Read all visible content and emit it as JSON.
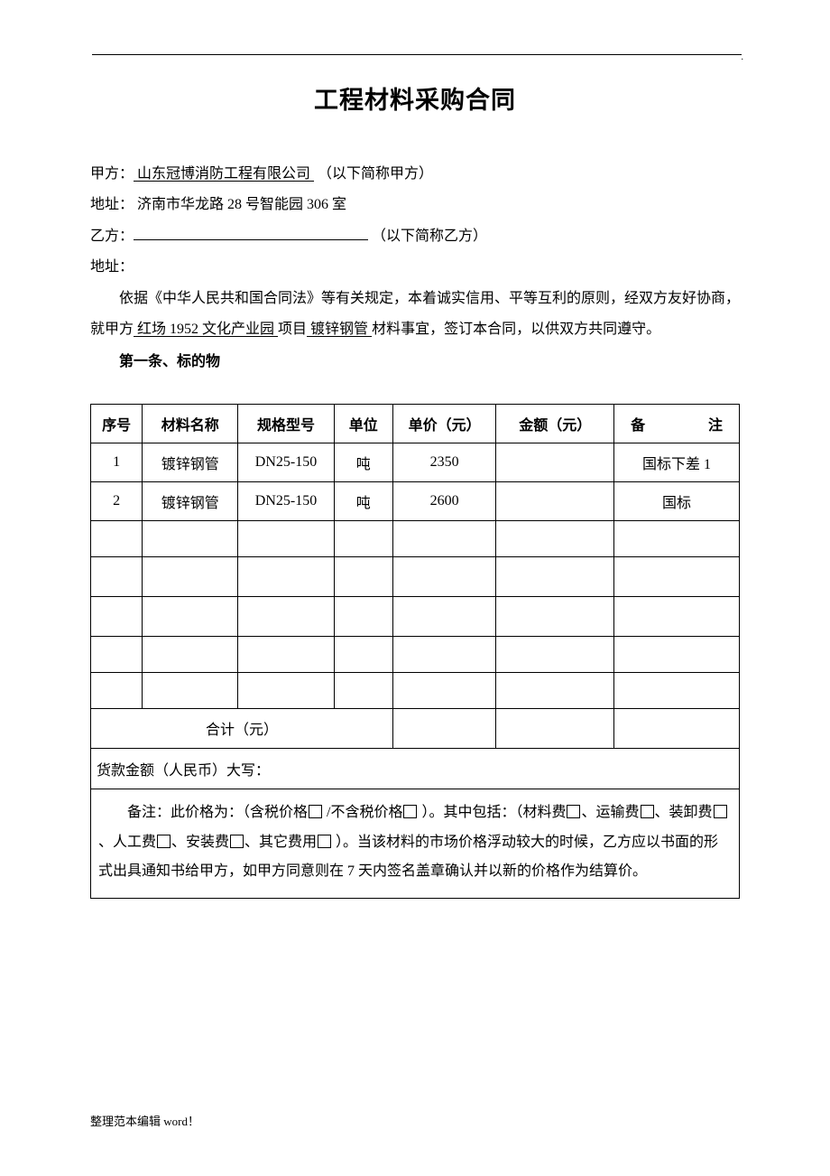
{
  "title": "工程材料采购合同",
  "partyA": {
    "label": "甲方：",
    "name": "山东冠博消防工程有限公司",
    "suffix": "（以下简称甲方）"
  },
  "addrA": {
    "label": "地址：",
    "value": " 济南市华龙路 28 号智能园 306 室"
  },
  "partyB": {
    "label": "乙方：",
    "suffix": "（以下简称乙方）"
  },
  "addrB": {
    "label": "地址："
  },
  "intro": {
    "pre": "依据《中华人民共和国合同法》等有关规定，本着诚实信用、平等互利的原则，经双方友好协商，就甲方",
    "project": "    红场 1952 文化产业园       ",
    "mid1": "项目",
    "material": "    镀锌钢管    ",
    "post": "材料事宜，签订本合同，以供双方共同遵守。"
  },
  "section1": "第一条、标的物",
  "table": {
    "headers": {
      "seq": "序号",
      "name": "材料名称",
      "spec": "规格型号",
      "unit": "单位",
      "price": "单价（元）",
      "amount": "金额（元）",
      "note": "备注"
    },
    "rows": [
      {
        "seq": "1",
        "name": "镀锌钢管",
        "spec": "DN25-150",
        "unit": "吨",
        "price": "2350",
        "amount": "",
        "note": "国标下差 1"
      },
      {
        "seq": "2",
        "name": "镀锌钢管",
        "spec": "DN25-150",
        "unit": "吨",
        "price": "2600",
        "amount": "",
        "note": "国标"
      },
      {
        "seq": "",
        "name": "",
        "spec": "",
        "unit": "",
        "price": "",
        "amount": "",
        "note": ""
      },
      {
        "seq": "",
        "name": "",
        "spec": "",
        "unit": "",
        "price": "",
        "amount": "",
        "note": ""
      },
      {
        "seq": "",
        "name": "",
        "spec": "",
        "unit": "",
        "price": "",
        "amount": "",
        "note": ""
      },
      {
        "seq": "",
        "name": "",
        "spec": "",
        "unit": "",
        "price": "",
        "amount": "",
        "note": ""
      },
      {
        "seq": "",
        "name": "",
        "spec": "",
        "unit": "",
        "price": "",
        "amount": "",
        "note": ""
      }
    ],
    "totalLabel": "合计（元）",
    "amountWords": "货款金额（人民币）大写：",
    "notes": {
      "p1a": "备注：此价格为：（含税价格",
      "p1b": " /不含税价格",
      "p1c": " ）。其中包括：（材料费",
      "p1d": "、运输费",
      "p1e": "、装卸费",
      "p1f": "、人工费",
      "p1g": "、安装费",
      "p1h": "、其它费用",
      "p1i": " ）。当该材料的市场价格浮动较大的时候，乙方应以书面的形式出具通知书给甲方，如甲方同意则在 7 天内签名盖章确认并以新的价格作为结算价。"
    }
  },
  "footer": "整理范本编辑 word！",
  "dot": "."
}
